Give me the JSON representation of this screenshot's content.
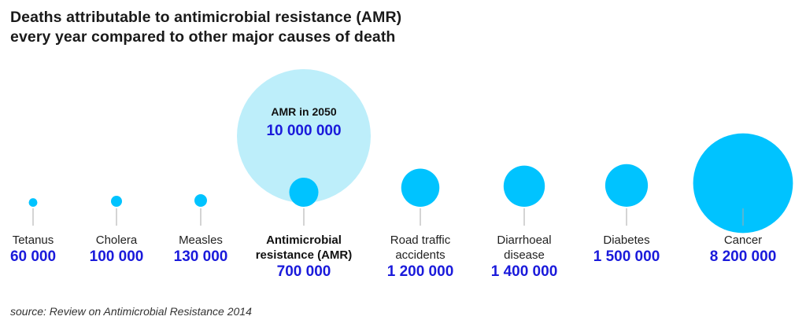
{
  "title": {
    "line1": "Deaths attributable to antimicrobial resistance (AMR)",
    "line2": "every year compared to other major causes of death"
  },
  "source": "source: Review on Antimicrobial Resistance 2014",
  "colors": {
    "bubble": "#00c3ff",
    "projection_bubble": "#bdeefa",
    "value_text": "#1a1adb",
    "connector": "#aaaaaa"
  },
  "chart_data": {
    "type": "bubble",
    "title": "Deaths attributable to antimicrobial resistance (AMR) every year compared to other major causes of death",
    "series": [
      {
        "values": [
          {
            "label": [
              "Tetanus"
            ],
            "value": 60000,
            "value_label": "60 000",
            "bold": false
          },
          {
            "label": [
              "Cholera"
            ],
            "value": 100000,
            "value_label": "100 000",
            "bold": false
          },
          {
            "label": [
              "Measles"
            ],
            "value": 130000,
            "value_label": "130 000",
            "bold": false
          },
          {
            "label": [
              "Antimicrobial",
              "resistance (AMR)"
            ],
            "value": 700000,
            "value_label": "700 000",
            "bold": true
          },
          {
            "label": [
              "Road traffic",
              "accidents"
            ],
            "value": 1200000,
            "value_label": "1 200 000",
            "bold": false
          },
          {
            "label": [
              "Diarrhoeal",
              "disease"
            ],
            "value": 1400000,
            "value_label": "1 400 000",
            "bold": false
          },
          {
            "label": [
              "Diabetes"
            ],
            "value": 1500000,
            "value_label": "1 500 000",
            "bold": false
          },
          {
            "label": [
              "Cancer"
            ],
            "value": 8200000,
            "value_label": "8 200 000",
            "bold": false
          }
        ]
      }
    ],
    "projection": {
      "label": "AMR in 2050",
      "value": 10000000,
      "value_label": "10 000 000",
      "category": "Antimicrobial resistance (AMR)"
    }
  }
}
